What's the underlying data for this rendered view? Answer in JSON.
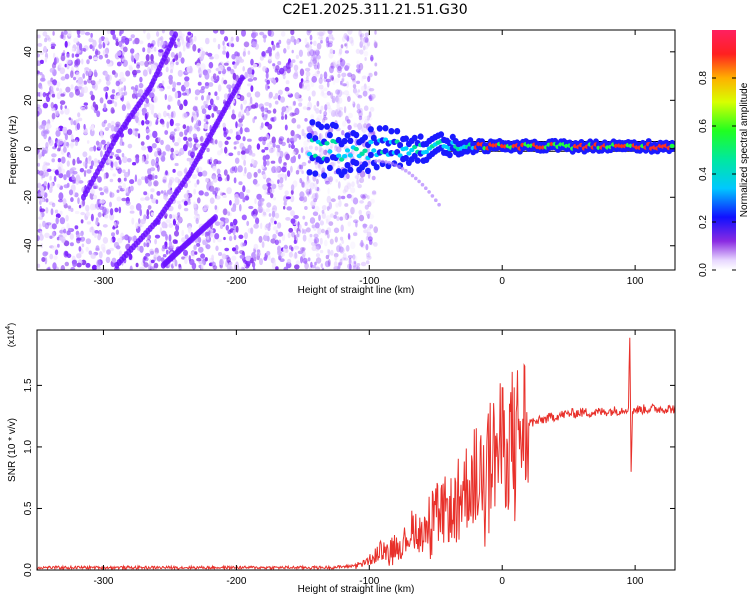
{
  "title": "C2E1.2025.311.21.51.G30",
  "chart_data": [
    {
      "type": "heatmap",
      "name": "spectrogram",
      "xlabel": "Height of straight line (km)",
      "ylabel": "Frequency (Hz)",
      "xlim": [
        -350,
        130
      ],
      "ylim": [
        -50,
        49
      ],
      "xticks": [
        -300,
        -200,
        -100,
        0,
        100
      ],
      "xtick_labels": [
        "-300",
        "-200",
        "-100",
        "0",
        "100"
      ],
      "yticks": [
        -40,
        -20,
        0,
        20,
        40
      ],
      "ytick_labels": [
        "-40",
        "-20",
        "0",
        "20",
        "40"
      ],
      "noise_region_x": [
        -350,
        -110
      ],
      "carrier_frequency_hz": 1,
      "carrier_start_x": -145,
      "colorbar": {
        "label": "Normalized spectral amplitude",
        "range": [
          0,
          1
        ],
        "ticks": [
          0.0,
          0.2,
          0.4,
          0.6,
          0.8
        ],
        "tick_labels": [
          "0.0",
          "0.2",
          "0.4",
          "0.6",
          "0.8"
        ]
      }
    },
    {
      "type": "line",
      "name": "snr",
      "xlabel": "Height of straight line (km)",
      "ylabel": "SNR (10 * v/v)",
      "multiplier_label": "(x10",
      "multiplier_exp": "4",
      "xlim": [
        -350,
        130
      ],
      "ylim": [
        0,
        1.95
      ],
      "xticks": [
        -300,
        -200,
        -100,
        0,
        100
      ],
      "xtick_labels": [
        "-300",
        "-200",
        "-100",
        "0",
        "100"
      ],
      "yticks": [
        0.0,
        0.5,
        1.0,
        1.5
      ],
      "ytick_labels": [
        "0.0",
        "0.5",
        "1.0",
        "1.5"
      ],
      "color": "#e8302a",
      "series": [
        {
          "name": "SNR",
          "x": [
            -350,
            -200,
            -130,
            -115,
            -105,
            -100,
            -95,
            -90,
            -85,
            -80,
            -75,
            -70,
            -65,
            -60,
            -55,
            -50,
            -45,
            -40,
            -35,
            -30,
            -25,
            -20,
            -15,
            -10,
            -5,
            0,
            5,
            10,
            15,
            20,
            25,
            30,
            40,
            50,
            60,
            70,
            80,
            90,
            95,
            96,
            97,
            98,
            100,
            110,
            120,
            130
          ],
          "y": [
            0.02,
            0.02,
            0.02,
            0.03,
            0.05,
            0.08,
            0.12,
            0.18,
            0.15,
            0.22,
            0.2,
            0.3,
            0.35,
            0.32,
            0.4,
            0.45,
            0.5,
            0.48,
            0.55,
            0.65,
            0.7,
            0.78,
            0.8,
            0.9,
            0.95,
            1.0,
            1.05,
            1.1,
            1.15,
            1.2,
            1.2,
            1.22,
            1.25,
            1.27,
            1.28,
            1.28,
            1.29,
            1.3,
            1.32,
            1.9,
            0.8,
            1.3,
            1.3,
            1.31,
            1.31,
            1.31
          ]
        }
      ]
    }
  ]
}
